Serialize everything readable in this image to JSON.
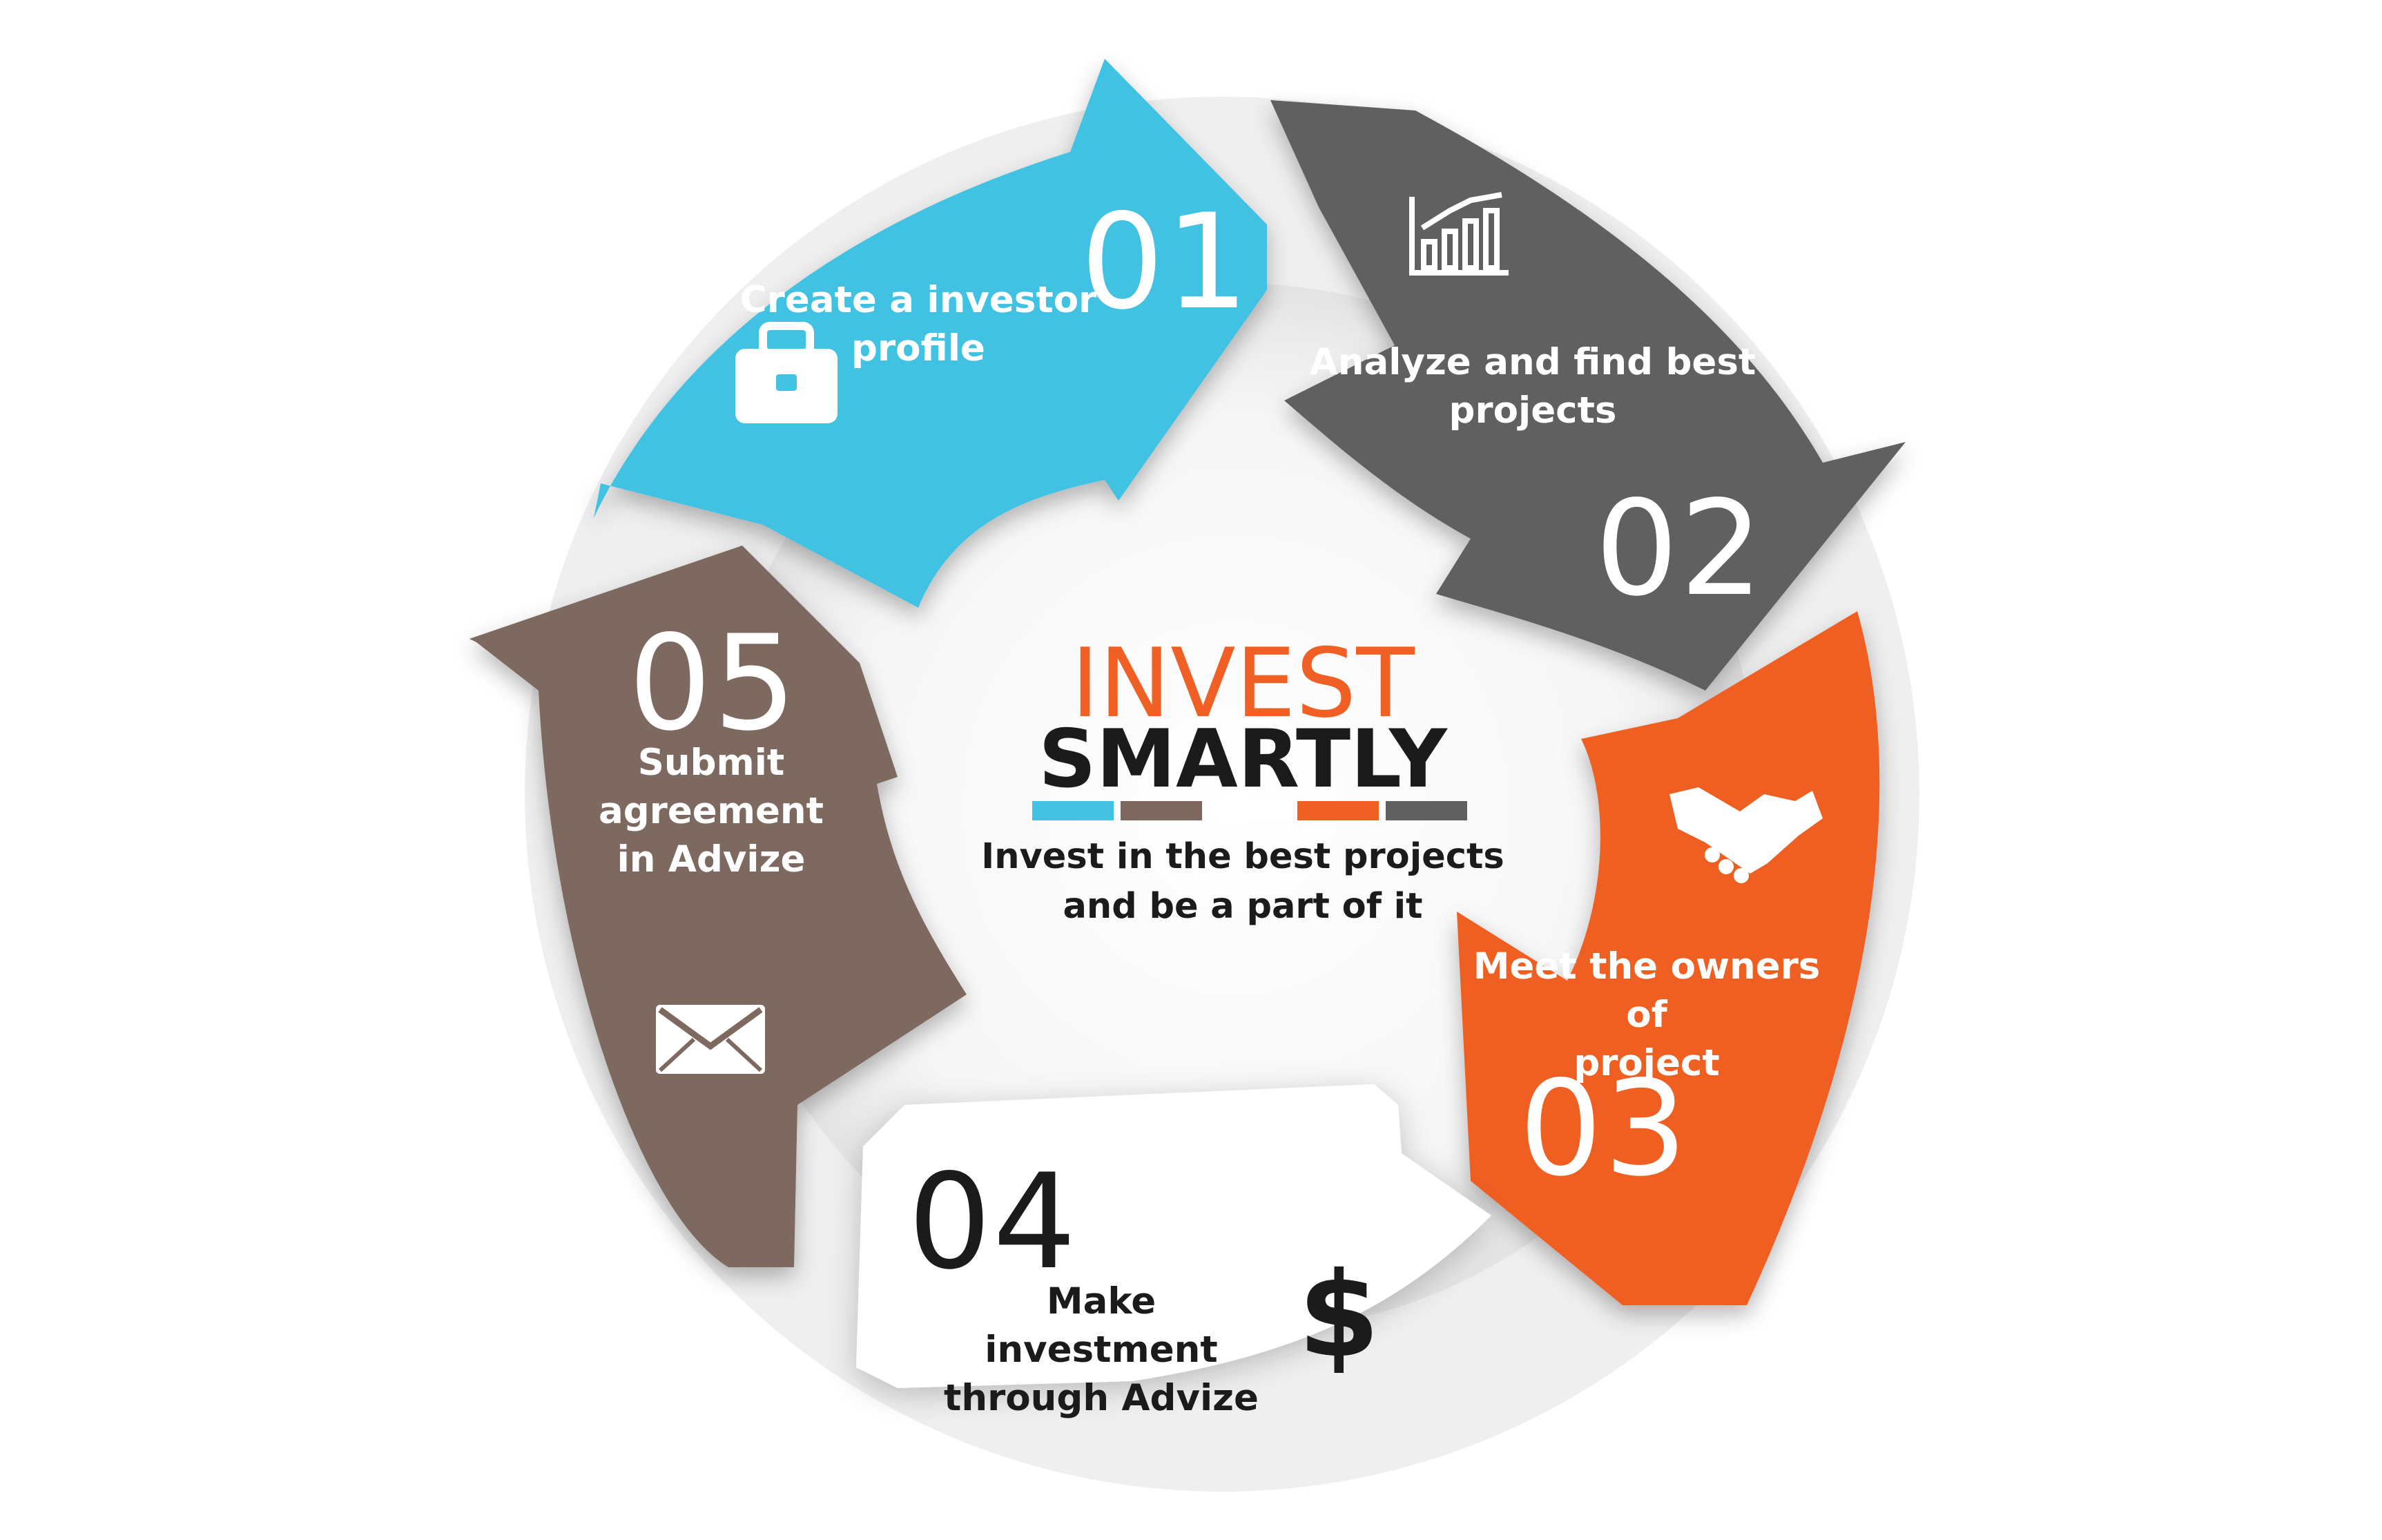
{
  "colors": {
    "blue": "#43c2e3",
    "gray": "#606060",
    "orange": "#f05f24",
    "white": "#ffffff",
    "brown": "#7d6960",
    "text_dark": "#1b1b1b"
  },
  "center": {
    "title_line1": "INVEST",
    "title_line2": "SMARTLY",
    "tagline_line1": "Invest in the best projects",
    "tagline_line2": "and be a part of it",
    "color_bar": [
      "#43c2e3",
      "#7d6960",
      "#ffffff",
      "#f05f24",
      "#606060"
    ]
  },
  "steps": [
    {
      "number": "01",
      "label_line1": "Create a investor",
      "label_line2": "profile",
      "icon": "briefcase-icon",
      "color": "#43c2e3"
    },
    {
      "number": "02",
      "label_line1": "Analyze and find best",
      "label_line2": "projects",
      "icon": "bar-chart-icon",
      "color": "#606060"
    },
    {
      "number": "03",
      "label_line1": "Meet the owners of",
      "label_line2": "project",
      "icon": "handshake-icon",
      "color": "#f05f24"
    },
    {
      "number": "04",
      "label_line1": "Make investment",
      "label_line2": "through Advize",
      "icon": "dollar-icon",
      "color": "#ffffff"
    },
    {
      "number": "05",
      "label_line1": "Submit agreement",
      "label_line2": "in Advize",
      "icon": "envelope-icon",
      "color": "#7d6960"
    }
  ]
}
